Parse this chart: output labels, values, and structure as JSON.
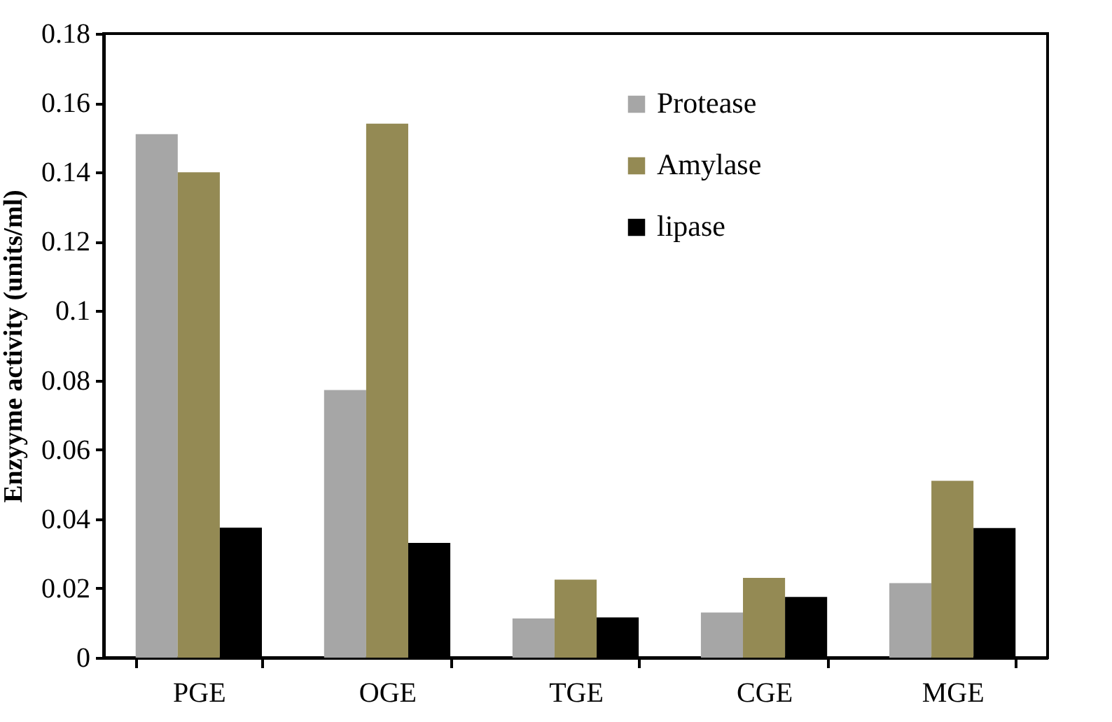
{
  "chart_data": {
    "type": "bar",
    "ylabel": "Enzyyme activity (units/ml)",
    "categories": [
      "PGE",
      "OGE",
      "TGE",
      "CGE",
      "MGE"
    ],
    "series": [
      {
        "name": "Protease",
        "color": "#a6a6a6",
        "values": [
          0.151,
          0.0772,
          0.0113,
          0.013,
          0.0215
        ]
      },
      {
        "name": "Amylase",
        "color": "#948a54",
        "values": [
          0.14,
          0.154,
          0.0225,
          0.023,
          0.051
        ]
      },
      {
        "name": "lipase",
        "color": "#000000",
        "values": [
          0.0375,
          0.0331,
          0.0116,
          0.0175,
          0.0374
        ]
      }
    ],
    "ylim": [
      0,
      0.18
    ],
    "yticks": [
      0,
      0.02,
      0.04,
      0.06,
      0.08,
      0.1,
      0.12,
      0.14,
      0.16,
      0.18
    ],
    "grid": false,
    "legend": "top right"
  }
}
